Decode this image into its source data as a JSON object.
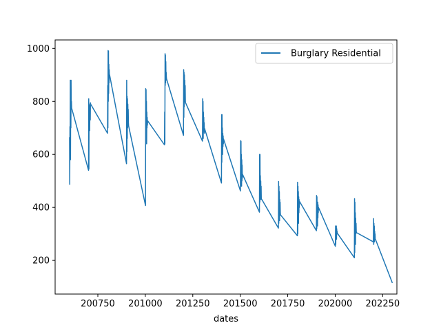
{
  "chart_data": {
    "type": "line",
    "title": "",
    "xlabel": "dates",
    "ylabel": "",
    "xlim": [
      200525,
      202325
    ],
    "ylim": [
      73,
      1032
    ],
    "x_ticks": [
      200750,
      201000,
      201250,
      201500,
      201750,
      202000,
      202250
    ],
    "y_ticks": [
      200,
      400,
      600,
      800,
      1000
    ],
    "grid": false,
    "legend_position": "top-right",
    "colors": {
      "series": "#1f77b4",
      "axes": "#000000",
      "background": "#ffffff"
    },
    "series": [
      {
        "name": "Burglary Residential",
        "x": [
          200601,
          200602,
          200603,
          200604,
          200605,
          200606,
          200607,
          200608,
          200609,
          200610,
          200611,
          200612,
          200701,
          200702,
          200703,
          200704,
          200705,
          200706,
          200707,
          200708,
          200709,
          200710,
          200711,
          200712,
          200801,
          200802,
          200803,
          200804,
          200805,
          200806,
          200807,
          200808,
          200809,
          200810,
          200811,
          200812,
          200901,
          200902,
          200903,
          200904,
          200905,
          200906,
          200907,
          200908,
          200909,
          200910,
          200911,
          200912,
          201001,
          201002,
          201003,
          201004,
          201005,
          201006,
          201007,
          201008,
          201009,
          201010,
          201011,
          201012,
          201101,
          201102,
          201103,
          201104,
          201105,
          201106,
          201107,
          201108,
          201109,
          201110,
          201111,
          201112,
          201201,
          201202,
          201203,
          201204,
          201205,
          201206,
          201207,
          201208,
          201209,
          201210,
          201211,
          201212,
          201301,
          201302,
          201303,
          201304,
          201305,
          201306,
          201307,
          201308,
          201309,
          201310,
          201311,
          201312,
          201401,
          201402,
          201403,
          201404,
          201405,
          201406,
          201407,
          201408,
          201409,
          201410,
          201411,
          201412,
          201501,
          201502,
          201503,
          201504,
          201505,
          201506,
          201507,
          201508,
          201509,
          201510,
          201511,
          201512,
          201601,
          201602,
          201603,
          201604,
          201605,
          201606,
          201607,
          201608,
          201609,
          201610,
          201611,
          201612,
          201701,
          201702,
          201703,
          201704,
          201705,
          201706,
          201707,
          201708,
          201709,
          201710,
          201711,
          201712,
          201801,
          201802,
          201803,
          201804,
          201805,
          201806,
          201807,
          201808,
          201809,
          201810,
          201811,
          201812,
          201901,
          201902,
          201903,
          201904,
          201905,
          201906,
          201907,
          201908,
          201909,
          201910,
          201911,
          201912,
          202001,
          202002,
          202003,
          202004,
          202005,
          202006,
          202007,
          202008,
          202009,
          202010,
          202011,
          202012,
          202101,
          202102,
          202103,
          202104,
          202105,
          202106,
          202107,
          202108,
          202109,
          202110,
          202111,
          202112,
          202201,
          202202,
          202203,
          202204,
          202205,
          202206,
          202207,
          202208,
          202209,
          202210,
          202211,
          202212,
          202301
        ],
        "y": [
          665,
          487,
          705,
          612,
          880,
          580,
          845,
          700,
          880,
          770,
          800,
          775,
          540,
          810,
          545,
          790,
          700,
          770,
          690,
          760,
          785,
          730,
          795,
          790,
          680,
          860,
          700,
          992,
          800,
          990,
          830,
          940,
          870,
          920,
          890,
          900,
          565,
          880,
          610,
          820,
          660,
          810,
          700,
          790,
          740,
          770,
          720,
          708,
          407,
          848,
          650,
          845,
          700,
          800,
          640,
          760,
          700,
          740,
          710,
          727,
          636,
          760,
          640,
          980,
          860,
          975,
          870,
          950,
          880,
          910,
          890,
          885,
          672,
          920,
          740,
          910,
          780,
          900,
          800,
          880,
          810,
          860,
          800,
          795,
          650,
          810,
          680,
          800,
          660,
          760,
          700,
          740,
          690,
          720,
          680,
          698,
          492,
          750,
          570,
          750,
          620,
          700,
          600,
          680,
          630,
          670,
          640,
          658,
          462,
          652,
          480,
          650,
          500,
          600,
          480,
          580,
          500,
          560,
          510,
          525,
          382,
          600,
          420,
          600,
          450,
          520,
          430,
          500,
          440,
          480,
          430,
          432,
          322,
          498,
          340,
          480,
          380,
          460,
          350,
          430,
          370,
          420,
          380,
          372,
          293,
          495,
          300,
          480,
          360,
          460,
          340,
          440,
          380,
          430,
          400,
          423,
          312,
          445,
          320,
          440,
          340,
          420,
          330,
          420,
          360,
          410,
          380,
          400,
          253,
          330,
          260,
          320,
          300,
          330,
          280,
          320,
          300,
          310,
          300,
          302,
          210,
          433,
          230,
          420,
          280,
          380,
          260,
          360,
          300,
          340,
          310,
          305,
          270,
          358,
          260,
          340,
          280,
          330,
          270,
          310,
          290,
          300,
          280,
          280,
          115
        ]
      }
    ]
  }
}
